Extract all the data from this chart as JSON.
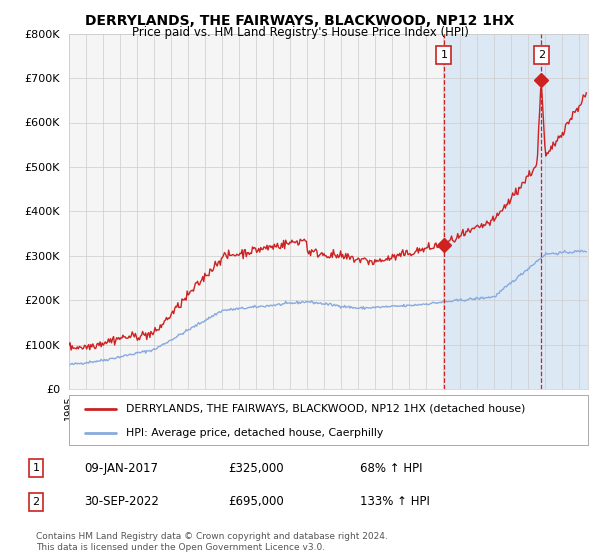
{
  "title": "DERRYLANDS, THE FAIRWAYS, BLACKWOOD, NP12 1HX",
  "subtitle": "Price paid vs. HM Land Registry's House Price Index (HPI)",
  "hpi_label": "HPI: Average price, detached house, Caerphilly",
  "property_label": "DERRYLANDS, THE FAIRWAYS, BLACKWOOD, NP12 1HX (detached house)",
  "sale1_date": "09-JAN-2017",
  "sale1_price": 325000,
  "sale1_pct": "68% ↑ HPI",
  "sale2_date": "30-SEP-2022",
  "sale2_price": 695000,
  "sale2_pct": "133% ↑ HPI",
  "sale1_x": 2017.03,
  "sale2_x": 2022.75,
  "ylim": [
    0,
    800000
  ],
  "xlim_start": 1995.0,
  "xlim_end": 2025.5,
  "background_color": "#f5f5f5",
  "plot_bg": "#f5f5f5",
  "red_color": "#cc2222",
  "blue_color": "#88aadd",
  "shade_color": "#dde8f5",
  "grid_color": "#cccccc",
  "copyright_text": "Contains HM Land Registry data © Crown copyright and database right 2024.\nThis data is licensed under the Open Government Licence v3.0."
}
